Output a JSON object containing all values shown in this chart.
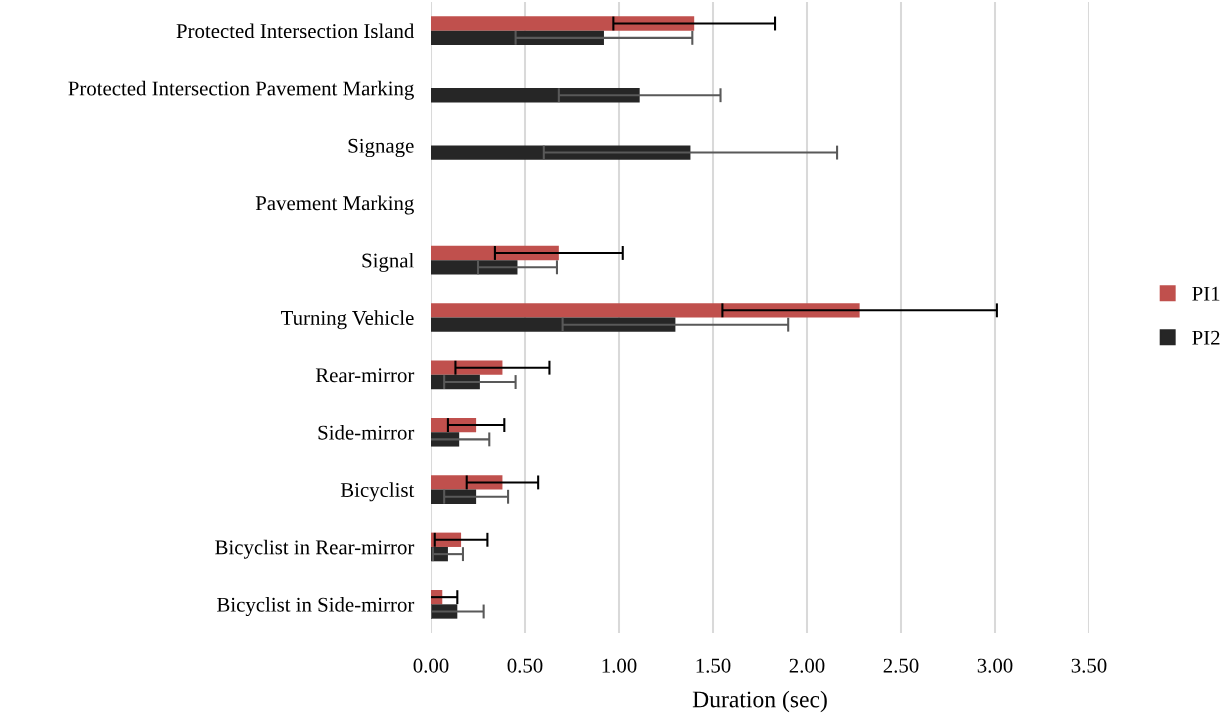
{
  "chart_data": {
    "type": "bar",
    "orientation": "horizontal",
    "xlabel": "Duration (sec)",
    "categories": [
      "Protected Intersection Island",
      "Protected Intersection Pavement Marking",
      "Signage",
      "Pavement Marking",
      "Signal",
      "Turning Vehicle",
      "Rear-mirror",
      "Side-mirror",
      "Bicyclist",
      "Bicyclist in Rear-mirror",
      "Bicyclist in Side-mirror"
    ],
    "series": [
      {
        "name": "PI1",
        "color": "#c0504d",
        "values": [
          1.4,
          null,
          null,
          null,
          0.68,
          2.28,
          0.38,
          0.24,
          0.38,
          0.16,
          0.06
        ],
        "errors": [
          0.43,
          null,
          null,
          null,
          0.34,
          0.73,
          0.25,
          0.15,
          0.19,
          0.14,
          0.08
        ]
      },
      {
        "name": "PI2",
        "color": "#262626",
        "values": [
          0.92,
          1.11,
          1.38,
          null,
          0.46,
          1.3,
          0.26,
          0.15,
          0.24,
          0.09,
          0.14
        ],
        "errors": [
          0.47,
          0.43,
          0.78,
          null,
          0.21,
          0.6,
          0.19,
          0.16,
          0.17,
          0.08,
          0.14
        ]
      }
    ],
    "xlim": [
      0,
      3.5
    ],
    "xticks": [
      {
        "value": 0,
        "label": "0.00"
      },
      {
        "value": 0.5,
        "label": "0.50"
      },
      {
        "value": 1,
        "label": "1.00"
      },
      {
        "value": 1.5,
        "label": "1.50"
      },
      {
        "value": 2,
        "label": "2.00"
      },
      {
        "value": 2.5,
        "label": "2.50"
      },
      {
        "value": 3,
        "label": "3.00"
      },
      {
        "value": 3.5,
        "label": "3.50"
      }
    ],
    "grid": "x",
    "legend": "right"
  }
}
